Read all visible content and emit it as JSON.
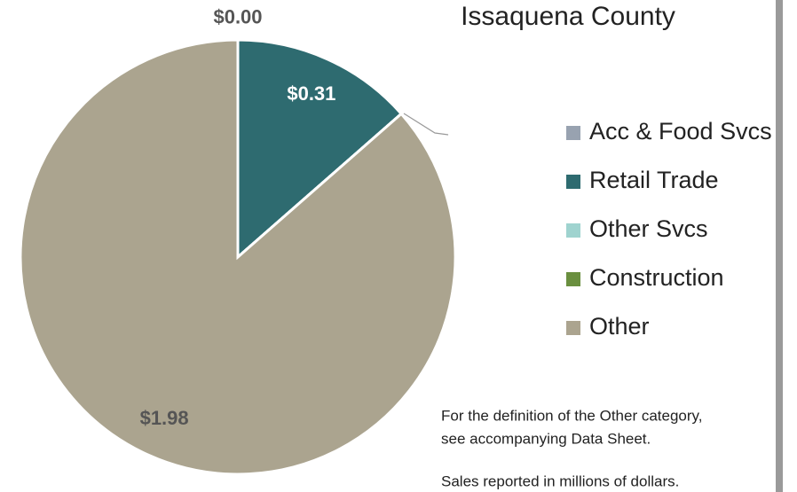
{
  "chart_data": {
    "type": "pie",
    "title": "Issaquena County",
    "categories": [
      "Acc & Food Svcs",
      "Retail Trade",
      "Other Svcs",
      "Construction",
      "Other"
    ],
    "values": [
      0.0,
      0.31,
      0,
      0,
      1.98
    ],
    "value_labels": [
      "$0.00",
      "$0.31",
      null,
      null,
      "$1.98"
    ],
    "colors": [
      "#98a2b0",
      "#2e6b70",
      "#9fd3cf",
      "#6a8f3f",
      "#aba48f"
    ],
    "legend": "right",
    "notes": [
      "For the definition of the Other category,",
      "see accompanying Data Sheet.",
      "Sales reported in millions of dollars."
    ]
  }
}
